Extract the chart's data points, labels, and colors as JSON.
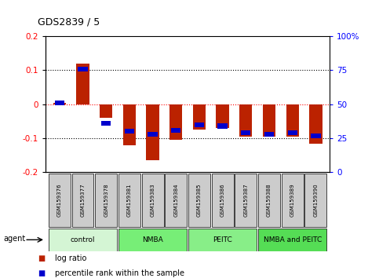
{
  "title": "GDS2839 / 5",
  "samples": [
    "GSM159376",
    "GSM159377",
    "GSM159378",
    "GSM159381",
    "GSM159383",
    "GSM159384",
    "GSM159385",
    "GSM159386",
    "GSM159387",
    "GSM159388",
    "GSM159389",
    "GSM159390"
  ],
  "log_ratio": [
    0.005,
    0.12,
    -0.04,
    -0.12,
    -0.165,
    -0.105,
    -0.075,
    -0.07,
    -0.095,
    -0.095,
    -0.095,
    -0.115
  ],
  "percentile_rank": [
    51,
    76,
    36,
    30,
    28,
    31,
    35,
    34,
    29,
    28,
    29,
    27
  ],
  "groups": [
    {
      "label": "control",
      "start": 0,
      "end": 3,
      "color": "#d4f5d4"
    },
    {
      "label": "NMBA",
      "start": 3,
      "end": 6,
      "color": "#77ee77"
    },
    {
      "label": "PEITC",
      "start": 6,
      "end": 9,
      "color": "#88ee88"
    },
    {
      "label": "NMBA and PEITC",
      "start": 9,
      "end": 12,
      "color": "#55dd55"
    }
  ],
  "ylim_left": [
    -0.2,
    0.2
  ],
  "ylim_right": [
    0,
    100
  ],
  "yticks_left": [
    -0.2,
    -0.1,
    0.0,
    0.1,
    0.2
  ],
  "yticks_right": [
    0,
    25,
    50,
    75,
    100
  ],
  "bar_color_red": "#bb2200",
  "bar_color_blue": "#0000cc",
  "bg_color": "#ffffff",
  "bar_width": 0.55
}
